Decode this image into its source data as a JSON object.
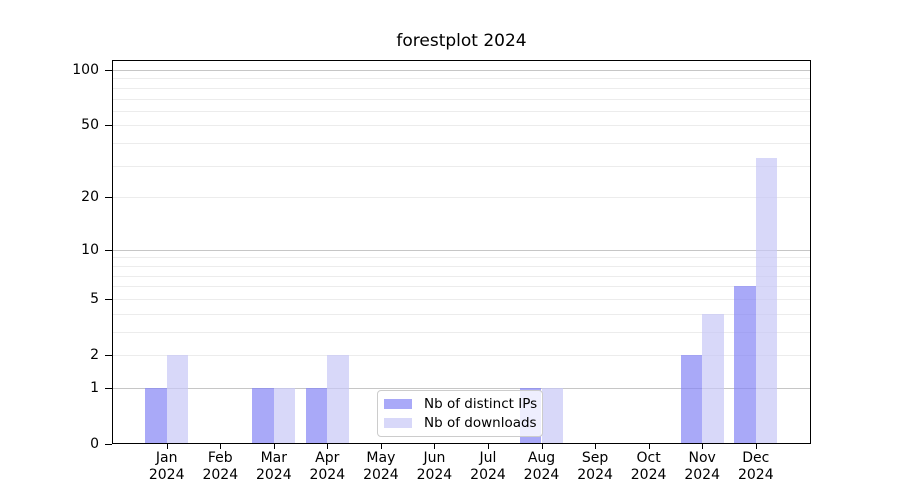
{
  "figure": {
    "title": "forestplot 2024",
    "background": "#ffffff"
  },
  "legend": {
    "items": [
      {
        "label": "Nb of distinct IPs",
        "color": "rgba(132,132,245,0.7)",
        "swatch_hex": "#a9a9f8"
      },
      {
        "label": "Nb of downloads",
        "color": "rgba(200,200,246,0.7)",
        "swatch_hex": "#d9d9f9"
      }
    ]
  },
  "chart_data": {
    "type": "bar",
    "title": "forestplot 2024",
    "categories": [
      "Jan 2024",
      "Feb 2024",
      "Mar 2024",
      "Apr 2024",
      "May 2024",
      "Jun 2024",
      "Jul 2024",
      "Aug 2024",
      "Sep 2024",
      "Oct 2024",
      "Nov 2024",
      "Dec 2024"
    ],
    "series": [
      {
        "name": "Nb of distinct IPs",
        "color": "#a9a9f8",
        "fill": "rgba(132,132,245,0.7)",
        "values": [
          1,
          0,
          1,
          1,
          0,
          0,
          0,
          1,
          0,
          0,
          2,
          6
        ]
      },
      {
        "name": "Nb of downloads",
        "color": "#d9d9f9",
        "fill": "rgba(200,200,246,0.7)",
        "values": [
          2,
          0,
          1,
          2,
          0,
          0,
          0,
          1,
          0,
          0,
          4,
          33
        ]
      }
    ],
    "xlabel": "",
    "ylabel": "",
    "yscale": "log1p",
    "yticks": [
      0,
      1,
      2,
      5,
      10,
      20,
      50,
      100
    ],
    "ylim": [
      0,
      113
    ],
    "grid": {
      "major_values": [
        1,
        10,
        100
      ],
      "minor_values": [
        2,
        3,
        4,
        5,
        6,
        7,
        8,
        9,
        20,
        30,
        40,
        50,
        60,
        70,
        80,
        90
      ],
      "major_color": "#c6c6c6",
      "minor_color": "#ececec"
    },
    "legend_position": "inside-bottom-center"
  }
}
